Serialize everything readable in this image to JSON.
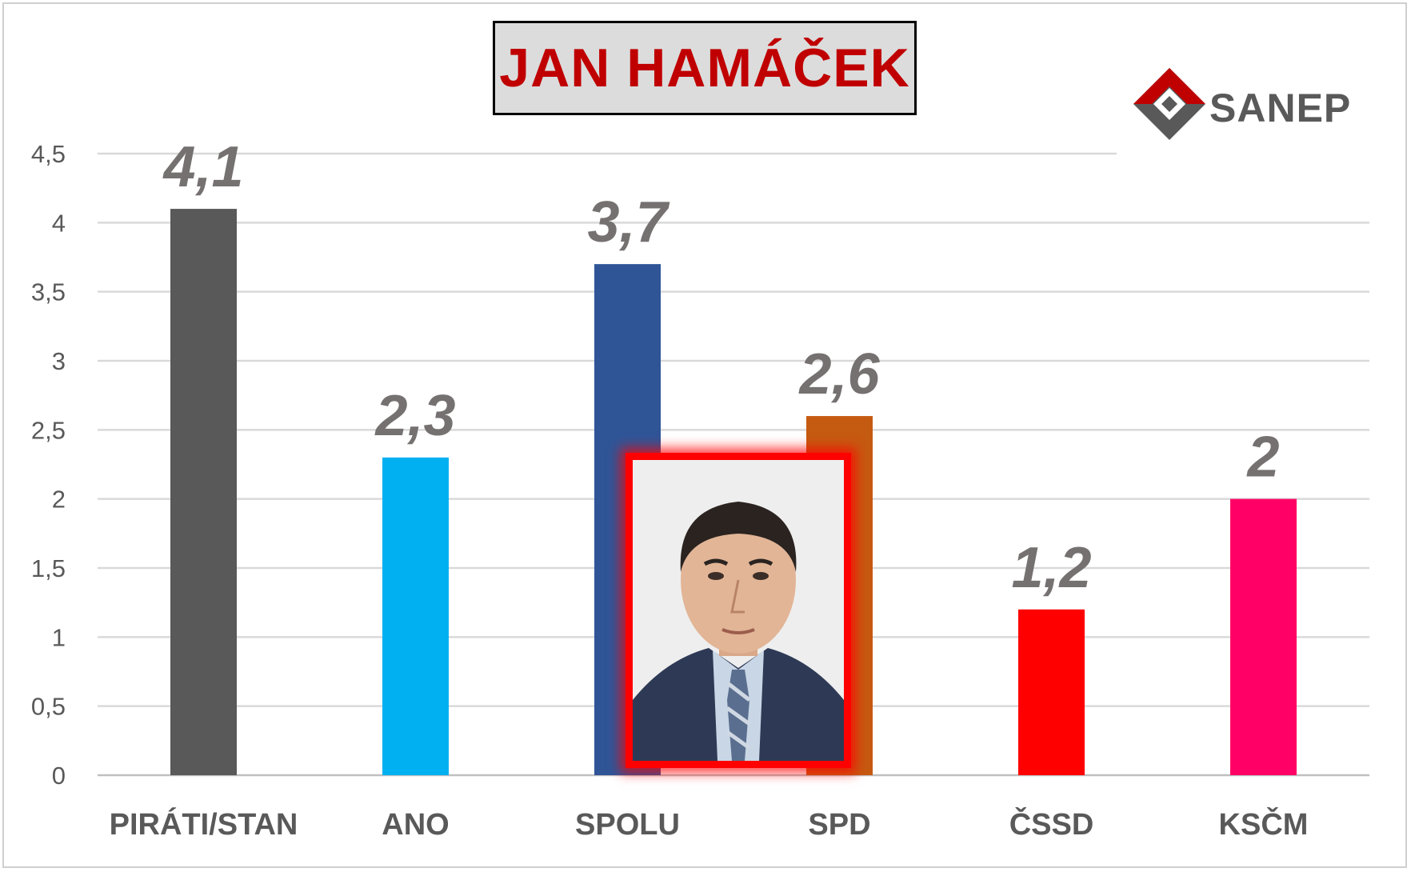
{
  "title": "JAN HAMÁČEK",
  "logo": {
    "text": "SANEP",
    "icon": "sanep-logo-icon"
  },
  "photo": {
    "subject": "portrait-photo"
  },
  "chart_data": {
    "type": "bar",
    "title": "JAN HAMÁČEK",
    "categories": [
      "PIRÁTI/STAN",
      "ANO",
      "SPOLU",
      "SPD",
      "ČSSD",
      "KSČM"
    ],
    "values": [
      4.1,
      2.3,
      3.7,
      2.6,
      1.2,
      2
    ],
    "value_labels": [
      "4,1",
      "2,3",
      "3,7",
      "2,6",
      "1,2",
      "2"
    ],
    "colors": [
      "#595959",
      "#00b0f0",
      "#2f5597",
      "#c55a11",
      "#ff0000",
      "#ff0066"
    ],
    "ylim": [
      0,
      4.5
    ],
    "yticks": [
      0,
      0.5,
      1,
      1.5,
      2,
      2.5,
      3,
      3.5,
      4,
      4.5
    ],
    "ytick_labels": [
      "0",
      "0,5",
      "1",
      "1,5",
      "2",
      "2,5",
      "3",
      "3,5",
      "4",
      "4,5"
    ],
    "grid": true,
    "xlabel": "",
    "ylabel": ""
  }
}
